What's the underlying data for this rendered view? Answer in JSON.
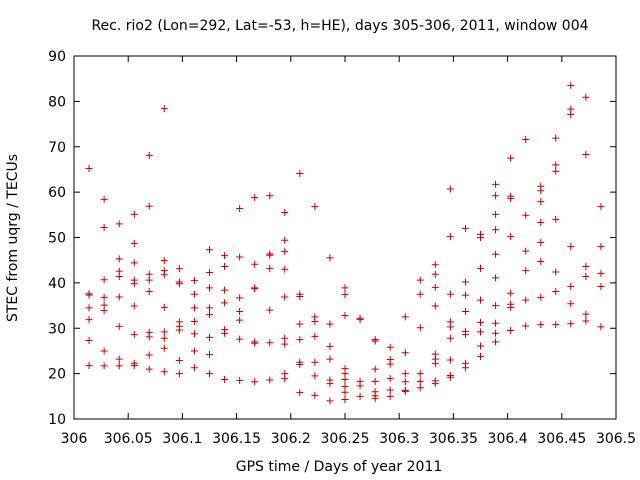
{
  "chart_data": {
    "type": "scatter",
    "title": "Rec. rio2 (Lon=292, Lat=-53, h=HE), days 305-306, 2011, window 004",
    "xlabel": "GPS time / Days of year 2011",
    "ylabel": "STEC from uqrg / TECUs",
    "xlim": [
      306,
      306.5
    ],
    "ylim": [
      10,
      90
    ],
    "xticks": [
      306,
      306.05,
      306.1,
      306.15,
      306.2,
      306.25,
      306.3,
      306.35,
      306.4,
      306.45,
      306.5
    ],
    "xtick_labels": [
      "306",
      "306.05",
      "306.1",
      "306.15",
      "306.2",
      "306.25",
      "306.3",
      "306.35",
      "306.4",
      "306.45",
      "306.5"
    ],
    "yticks": [
      10,
      20,
      30,
      40,
      50,
      60,
      70,
      80,
      90
    ],
    "ytick_labels": [
      "10",
      "20",
      "30",
      "40",
      "50",
      "60",
      "70",
      "80",
      "90"
    ],
    "grid": false,
    "legend": "none",
    "marker": "+",
    "color": "#cc0000",
    "points": [
      {
        "x": 306.0139,
        "y": 65.2
      },
      {
        "x": 306.0139,
        "y": 37.6
      },
      {
        "x": 306.0139,
        "y": 37.3
      },
      {
        "x": 306.0139,
        "y": 34.5
      },
      {
        "x": 306.0139,
        "y": 31.9
      },
      {
        "x": 306.0139,
        "y": 27.3
      },
      {
        "x": 306.0139,
        "y": 21.8
      },
      {
        "x": 306.0278,
        "y": 58.4
      },
      {
        "x": 306.0278,
        "y": 52.2
      },
      {
        "x": 306.0278,
        "y": 40.7
      },
      {
        "x": 306.0278,
        "y": 36.8
      },
      {
        "x": 306.0278,
        "y": 35.1
      },
      {
        "x": 306.0278,
        "y": 33.9
      },
      {
        "x": 306.0278,
        "y": 25.0
      },
      {
        "x": 306.0278,
        "y": 21.7
      },
      {
        "x": 306.0417,
        "y": 53.0
      },
      {
        "x": 306.0417,
        "y": 45.3
      },
      {
        "x": 306.0417,
        "y": 42.6
      },
      {
        "x": 306.0417,
        "y": 41.4
      },
      {
        "x": 306.0417,
        "y": 36.9
      },
      {
        "x": 306.0417,
        "y": 30.4
      },
      {
        "x": 306.0417,
        "y": 23.2
      },
      {
        "x": 306.0417,
        "y": 21.7
      },
      {
        "x": 306.0556,
        "y": 55.1
      },
      {
        "x": 306.0556,
        "y": 48.7
      },
      {
        "x": 306.0556,
        "y": 44.4
      },
      {
        "x": 306.0556,
        "y": 40.6
      },
      {
        "x": 306.0556,
        "y": 39.8
      },
      {
        "x": 306.0556,
        "y": 34.9
      },
      {
        "x": 306.0556,
        "y": 28.6
      },
      {
        "x": 306.0556,
        "y": 22.3
      },
      {
        "x": 306.0556,
        "y": 21.8
      },
      {
        "x": 306.0694,
        "y": 68.1
      },
      {
        "x": 306.0694,
        "y": 56.9
      },
      {
        "x": 306.0694,
        "y": 41.9
      },
      {
        "x": 306.0694,
        "y": 40.6
      },
      {
        "x": 306.0694,
        "y": 38.1
      },
      {
        "x": 306.0694,
        "y": 29.1
      },
      {
        "x": 306.0694,
        "y": 28.1
      },
      {
        "x": 306.0694,
        "y": 24.1
      },
      {
        "x": 306.0694,
        "y": 21.0
      },
      {
        "x": 306.0833,
        "y": 78.4
      },
      {
        "x": 306.0833,
        "y": 44.9
      },
      {
        "x": 306.0833,
        "y": 42.7
      },
      {
        "x": 306.0833,
        "y": 41.8
      },
      {
        "x": 306.0833,
        "y": 34.6
      },
      {
        "x": 306.0833,
        "y": 29.2
      },
      {
        "x": 306.0833,
        "y": 27.8
      },
      {
        "x": 306.0833,
        "y": 25.6
      },
      {
        "x": 306.0833,
        "y": 20.4
      },
      {
        "x": 306.0972,
        "y": 43.1
      },
      {
        "x": 306.0972,
        "y": 40.2
      },
      {
        "x": 306.0972,
        "y": 39.8
      },
      {
        "x": 306.0972,
        "y": 31.4
      },
      {
        "x": 306.0972,
        "y": 30.4
      },
      {
        "x": 306.0972,
        "y": 29.6
      },
      {
        "x": 306.0972,
        "y": 22.9
      },
      {
        "x": 306.0972,
        "y": 20.0
      },
      {
        "x": 306.1111,
        "y": 40.5
      },
      {
        "x": 306.1111,
        "y": 37.5
      },
      {
        "x": 306.1111,
        "y": 34.5
      },
      {
        "x": 306.1111,
        "y": 31.5
      },
      {
        "x": 306.1111,
        "y": 28.8
      },
      {
        "x": 306.1111,
        "y": 25.0
      },
      {
        "x": 306.1111,
        "y": 21.3
      },
      {
        "x": 306.125,
        "y": 47.3
      },
      {
        "x": 306.125,
        "y": 42.3
      },
      {
        "x": 306.125,
        "y": 38.9
      },
      {
        "x": 306.125,
        "y": 34.5
      },
      {
        "x": 306.125,
        "y": 33.0
      },
      {
        "x": 306.125,
        "y": 28.0
      },
      {
        "x": 306.125,
        "y": 24.2
      },
      {
        "x": 306.125,
        "y": 20.0
      },
      {
        "x": 306.1389,
        "y": 46.0
      },
      {
        "x": 306.1389,
        "y": 43.6
      },
      {
        "x": 306.1389,
        "y": 38.4
      },
      {
        "x": 306.1389,
        "y": 35.6
      },
      {
        "x": 306.1389,
        "y": 29.7
      },
      {
        "x": 306.1389,
        "y": 28.9
      },
      {
        "x": 306.1389,
        "y": 18.7
      },
      {
        "x": 306.1528,
        "y": 56.4
      },
      {
        "x": 306.1528,
        "y": 45.7
      },
      {
        "x": 306.1528,
        "y": 36.7
      },
      {
        "x": 306.1528,
        "y": 33.7
      },
      {
        "x": 306.1528,
        "y": 31.8
      },
      {
        "x": 306.1528,
        "y": 27.6
      },
      {
        "x": 306.1528,
        "y": 18.5
      },
      {
        "x": 306.1667,
        "y": 58.8
      },
      {
        "x": 306.1667,
        "y": 44.1
      },
      {
        "x": 306.1667,
        "y": 38.9
      },
      {
        "x": 306.1667,
        "y": 38.7
      },
      {
        "x": 306.1667,
        "y": 27.0
      },
      {
        "x": 306.1667,
        "y": 26.7
      },
      {
        "x": 306.1667,
        "y": 18.2
      },
      {
        "x": 306.1806,
        "y": 59.2
      },
      {
        "x": 306.1806,
        "y": 46.4
      },
      {
        "x": 306.1806,
        "y": 46.1
      },
      {
        "x": 306.1806,
        "y": 43.2
      },
      {
        "x": 306.1806,
        "y": 34.0
      },
      {
        "x": 306.1806,
        "y": 26.8
      },
      {
        "x": 306.1806,
        "y": 18.6
      },
      {
        "x": 306.1944,
        "y": 55.5
      },
      {
        "x": 306.1944,
        "y": 49.4
      },
      {
        "x": 306.1944,
        "y": 46.9
      },
      {
        "x": 306.1944,
        "y": 43.0
      },
      {
        "x": 306.1944,
        "y": 36.9
      },
      {
        "x": 306.1944,
        "y": 27.8
      },
      {
        "x": 306.1944,
        "y": 26.5
      },
      {
        "x": 306.1944,
        "y": 20.0
      },
      {
        "x": 306.1944,
        "y": 18.9
      },
      {
        "x": 306.2083,
        "y": 64.1
      },
      {
        "x": 306.2083,
        "y": 37.5
      },
      {
        "x": 306.2083,
        "y": 37.0
      },
      {
        "x": 306.2083,
        "y": 30.9
      },
      {
        "x": 306.2083,
        "y": 27.5
      },
      {
        "x": 306.2083,
        "y": 22.5
      },
      {
        "x": 306.2083,
        "y": 22.0
      },
      {
        "x": 306.2083,
        "y": 15.8
      },
      {
        "x": 306.2222,
        "y": 56.8
      },
      {
        "x": 306.2222,
        "y": 32.5
      },
      {
        "x": 306.2222,
        "y": 31.5
      },
      {
        "x": 306.2222,
        "y": 28.2
      },
      {
        "x": 306.2222,
        "y": 22.5
      },
      {
        "x": 306.2222,
        "y": 19.5
      },
      {
        "x": 306.2222,
        "y": 15.2
      },
      {
        "x": 306.2361,
        "y": 45.5
      },
      {
        "x": 306.2361,
        "y": 30.9
      },
      {
        "x": 306.2361,
        "y": 26.0
      },
      {
        "x": 306.2361,
        "y": 23.2
      },
      {
        "x": 306.2361,
        "y": 18.6
      },
      {
        "x": 306.2361,
        "y": 17.8
      },
      {
        "x": 306.2361,
        "y": 14.0
      },
      {
        "x": 306.25,
        "y": 38.9
      },
      {
        "x": 306.25,
        "y": 37.4
      },
      {
        "x": 306.25,
        "y": 32.8
      },
      {
        "x": 306.25,
        "y": 21.1
      },
      {
        "x": 306.25,
        "y": 20.0
      },
      {
        "x": 306.25,
        "y": 18.7
      },
      {
        "x": 306.25,
        "y": 17.2
      },
      {
        "x": 306.25,
        "y": 15.9
      },
      {
        "x": 306.25,
        "y": 14.3
      },
      {
        "x": 306.2639,
        "y": 32.2
      },
      {
        "x": 306.2639,
        "y": 31.9
      },
      {
        "x": 306.2639,
        "y": 18.3
      },
      {
        "x": 306.2639,
        "y": 17.3
      },
      {
        "x": 306.2639,
        "y": 15.0
      },
      {
        "x": 306.2778,
        "y": 27.5
      },
      {
        "x": 306.2778,
        "y": 27.2
      },
      {
        "x": 306.2778,
        "y": 21.0
      },
      {
        "x": 306.2778,
        "y": 18.3
      },
      {
        "x": 306.2778,
        "y": 16.0
      },
      {
        "x": 306.2778,
        "y": 15.1
      },
      {
        "x": 306.2778,
        "y": 14.5
      },
      {
        "x": 306.2917,
        "y": 25.8
      },
      {
        "x": 306.2917,
        "y": 23.1
      },
      {
        "x": 306.2917,
        "y": 22.1
      },
      {
        "x": 306.2917,
        "y": 18.9
      },
      {
        "x": 306.2917,
        "y": 16.4
      },
      {
        "x": 306.2917,
        "y": 15.0
      },
      {
        "x": 306.3056,
        "y": 32.5
      },
      {
        "x": 306.3056,
        "y": 24.6
      },
      {
        "x": 306.3056,
        "y": 20.0
      },
      {
        "x": 306.3056,
        "y": 18.2
      },
      {
        "x": 306.3056,
        "y": 16.3
      },
      {
        "x": 306.3056,
        "y": 16.1
      },
      {
        "x": 306.3194,
        "y": 40.6
      },
      {
        "x": 306.3194,
        "y": 37.5
      },
      {
        "x": 306.3194,
        "y": 30.1
      },
      {
        "x": 306.3194,
        "y": 20.0
      },
      {
        "x": 306.3194,
        "y": 18.3
      },
      {
        "x": 306.3194,
        "y": 16.9
      },
      {
        "x": 306.3333,
        "y": 44.0
      },
      {
        "x": 306.3333,
        "y": 41.9
      },
      {
        "x": 306.3333,
        "y": 39.0
      },
      {
        "x": 306.3333,
        "y": 34.9
      },
      {
        "x": 306.3333,
        "y": 24.3
      },
      {
        "x": 306.3333,
        "y": 23.2
      },
      {
        "x": 306.3333,
        "y": 22.2
      },
      {
        "x": 306.3333,
        "y": 18.4
      },
      {
        "x": 306.3333,
        "y": 17.8
      },
      {
        "x": 306.3472,
        "y": 60.7
      },
      {
        "x": 306.3472,
        "y": 50.2
      },
      {
        "x": 306.3472,
        "y": 37.5
      },
      {
        "x": 306.3472,
        "y": 31.4
      },
      {
        "x": 306.3472,
        "y": 30.3
      },
      {
        "x": 306.3472,
        "y": 27.8
      },
      {
        "x": 306.3472,
        "y": 23.0
      },
      {
        "x": 306.3472,
        "y": 19.6
      },
      {
        "x": 306.3472,
        "y": 19.2
      },
      {
        "x": 306.3611,
        "y": 52.0
      },
      {
        "x": 306.3611,
        "y": 40.2
      },
      {
        "x": 306.3611,
        "y": 37.3
      },
      {
        "x": 306.3611,
        "y": 33.7
      },
      {
        "x": 306.3611,
        "y": 29.3
      },
      {
        "x": 306.3611,
        "y": 28.6
      },
      {
        "x": 306.3611,
        "y": 22.3
      },
      {
        "x": 306.3611,
        "y": 21.3
      },
      {
        "x": 306.375,
        "y": 50.7
      },
      {
        "x": 306.375,
        "y": 50.0
      },
      {
        "x": 306.375,
        "y": 43.2
      },
      {
        "x": 306.375,
        "y": 36.2
      },
      {
        "x": 306.375,
        "y": 31.3
      },
      {
        "x": 306.375,
        "y": 29.2
      },
      {
        "x": 306.375,
        "y": 26.1
      },
      {
        "x": 306.375,
        "y": 23.8
      },
      {
        "x": 306.3889,
        "y": 61.7
      },
      {
        "x": 306.3889,
        "y": 59.2
      },
      {
        "x": 306.3889,
        "y": 55.1
      },
      {
        "x": 306.3889,
        "y": 51.7
      },
      {
        "x": 306.3889,
        "y": 46.3
      },
      {
        "x": 306.3889,
        "y": 41.1
      },
      {
        "x": 306.3889,
        "y": 35.0
      },
      {
        "x": 306.3889,
        "y": 31.1
      },
      {
        "x": 306.3889,
        "y": 28.9
      },
      {
        "x": 306.3889,
        "y": 27.0
      },
      {
        "x": 306.4028,
        "y": 67.5
      },
      {
        "x": 306.4028,
        "y": 59.1
      },
      {
        "x": 306.4028,
        "y": 58.6
      },
      {
        "x": 306.4028,
        "y": 50.2
      },
      {
        "x": 306.4028,
        "y": 37.7
      },
      {
        "x": 306.4028,
        "y": 35.3
      },
      {
        "x": 306.4028,
        "y": 34.6
      },
      {
        "x": 306.4028,
        "y": 29.5
      },
      {
        "x": 306.4167,
        "y": 71.6
      },
      {
        "x": 306.4167,
        "y": 54.9
      },
      {
        "x": 306.4167,
        "y": 47.0
      },
      {
        "x": 306.4167,
        "y": 42.7
      },
      {
        "x": 306.4167,
        "y": 36.2
      },
      {
        "x": 306.4167,
        "y": 30.5
      },
      {
        "x": 306.4306,
        "y": 61.3
      },
      {
        "x": 306.4306,
        "y": 60.3
      },
      {
        "x": 306.4306,
        "y": 57.9
      },
      {
        "x": 306.4306,
        "y": 53.3
      },
      {
        "x": 306.4306,
        "y": 48.9
      },
      {
        "x": 306.4306,
        "y": 44.7
      },
      {
        "x": 306.4306,
        "y": 36.8
      },
      {
        "x": 306.4306,
        "y": 30.8
      },
      {
        "x": 306.4444,
        "y": 71.9
      },
      {
        "x": 306.4444,
        "y": 66.0
      },
      {
        "x": 306.4444,
        "y": 64.6
      },
      {
        "x": 306.4444,
        "y": 54.0
      },
      {
        "x": 306.4444,
        "y": 42.4
      },
      {
        "x": 306.4444,
        "y": 38.1
      },
      {
        "x": 306.4444,
        "y": 30.8
      },
      {
        "x": 306.4583,
        "y": 83.5
      },
      {
        "x": 306.4583,
        "y": 78.3
      },
      {
        "x": 306.4583,
        "y": 77.1
      },
      {
        "x": 306.4583,
        "y": 48.0
      },
      {
        "x": 306.4583,
        "y": 39.2
      },
      {
        "x": 306.4583,
        "y": 35.4
      },
      {
        "x": 306.4583,
        "y": 31.0
      },
      {
        "x": 306.4722,
        "y": 80.9
      },
      {
        "x": 306.4722,
        "y": 68.3
      },
      {
        "x": 306.4722,
        "y": 43.6
      },
      {
        "x": 306.4722,
        "y": 41.4
      },
      {
        "x": 306.4722,
        "y": 33.1
      },
      {
        "x": 306.4722,
        "y": 31.6
      },
      {
        "x": 306.4861,
        "y": 56.8
      },
      {
        "x": 306.4861,
        "y": 48.0
      },
      {
        "x": 306.4861,
        "y": 42.1
      },
      {
        "x": 306.4861,
        "y": 39.2
      },
      {
        "x": 306.4861,
        "y": 30.3
      }
    ]
  }
}
